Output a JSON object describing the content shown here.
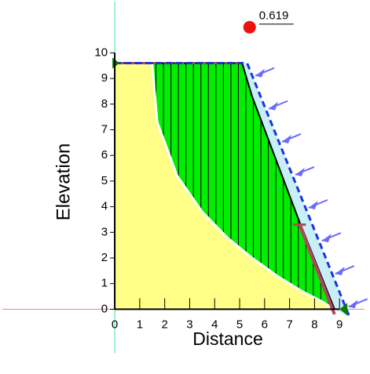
{
  "chart_data": {
    "type": "slope",
    "x_label": "Distance",
    "y_label": "Elevation",
    "xlim": [
      -4.5,
      10
    ],
    "ylim": [
      -1.7,
      12
    ],
    "xticks": [
      0,
      1,
      2,
      3,
      4,
      5,
      6,
      7,
      8,
      9
    ],
    "yticks": [
      0,
      1,
      2,
      3,
      4,
      5,
      6,
      7,
      8,
      9,
      10
    ],
    "slope": {
      "color": "#ffff88",
      "x": [
        0,
        0,
        5.1,
        5.5,
        7.4,
        8.8
      ],
      "y": [
        0,
        9.6,
        9.6,
        8.3,
        3.4,
        0
      ]
    },
    "slip_surface": {
      "color": "#00ee00",
      "x": [
        1.5,
        1.7,
        2.5,
        3.5,
        4.5,
        5.5,
        6.5,
        7.5,
        8.3,
        8.8
      ],
      "y": [
        9.6,
        7.3,
        5.2,
        3.8,
        2.8,
        2.0,
        1.3,
        0.7,
        0.3,
        0
      ]
    },
    "water_line": {
      "color": "#1a33dd",
      "x": [
        0,
        5.3,
        9.4
      ],
      "y": [
        9.6,
        9.6,
        -0.3
      ]
    },
    "crack": {
      "color": "#b04a5a",
      "x": [
        7.4,
        8.8
      ],
      "y": [
        3.3,
        -0.2
      ]
    },
    "center": {
      "color": "#ee1111",
      "x": 5.4,
      "y": 11,
      "value": 0.619
    }
  }
}
